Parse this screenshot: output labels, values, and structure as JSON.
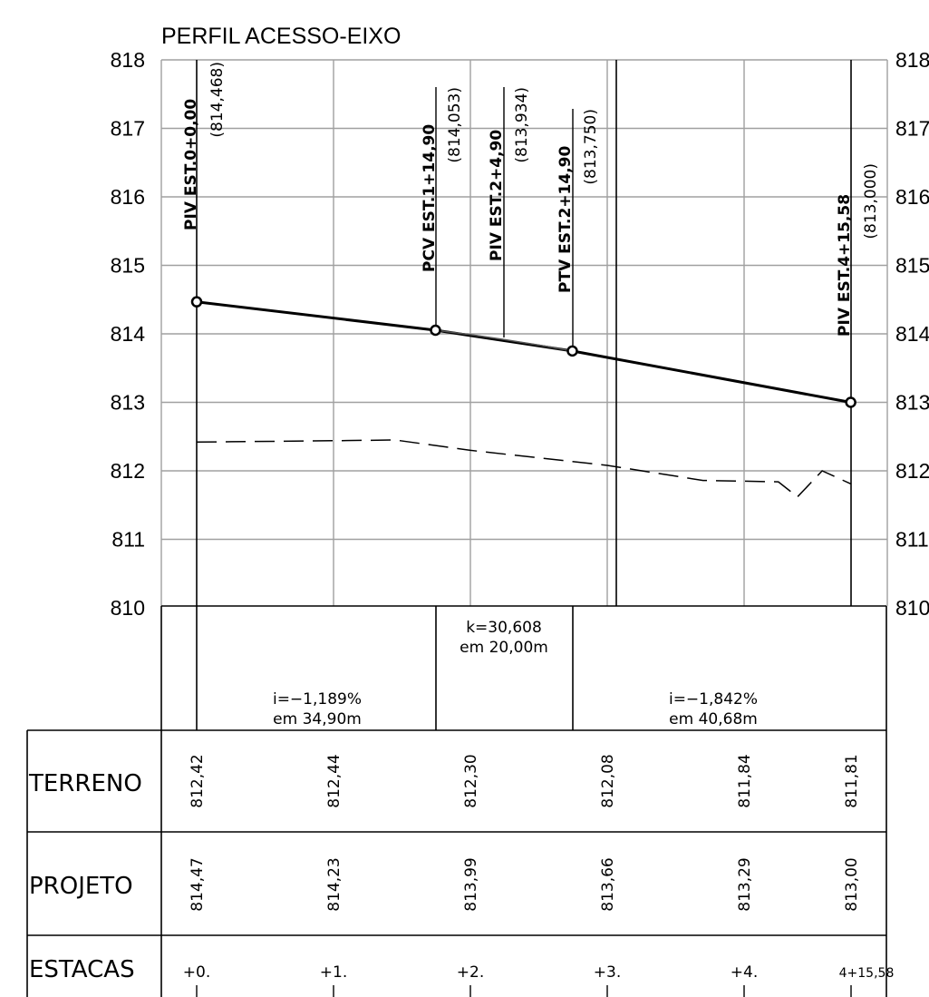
{
  "title": "PERFIL ACESSO-EIXO",
  "y_axis": {
    "ticks": [
      "818",
      "817",
      "816",
      "815",
      "814",
      "813",
      "812",
      "811",
      "810"
    ],
    "right_ticks": [
      "818",
      "817",
      "816",
      "815",
      "814",
      "813",
      "812",
      "811",
      "810"
    ]
  },
  "vertical_points": [
    {
      "label": "PIV EST.0+0,00",
      "elevation": "(814,468)",
      "station": 0.0,
      "value": 814.468
    },
    {
      "label": "PCV EST.1+14,90",
      "elevation": "(814,053)",
      "station": 34.9,
      "value": 814.053
    },
    {
      "label": "PIV EST.2+4,90",
      "elevation": "(813,934)",
      "station": 44.9,
      "value": 813.934
    },
    {
      "label": "PTV EST.2+14,90",
      "elevation": "(813,750)",
      "station": 54.9,
      "value": 813.75
    },
    {
      "label": "PIV EST.4+15,58",
      "elevation": "(813,000)",
      "station": 95.58,
      "value": 813.0
    }
  ],
  "grades": {
    "first": {
      "slope": "i=−1,189%",
      "length": "em  34,90m"
    },
    "curve": {
      "k": "k=30,608",
      "length": "em  20,00m"
    },
    "second": {
      "slope": "i=−1,842%",
      "length": "em  40,68m"
    }
  },
  "table": {
    "rows": [
      {
        "label": "TERRENO",
        "values": [
          "812,42",
          "812,44",
          "812,30",
          "812,08",
          "811,84",
          "811,81"
        ]
      },
      {
        "label": "PROJETO",
        "values": [
          "814,47",
          "814,23",
          "813,99",
          "813,66",
          "813,29",
          "813,00"
        ]
      },
      {
        "label": "ESTACAS",
        "values": [
          "+0.",
          "+1.",
          "+2.",
          "+3.",
          "+4.",
          "4+15,58"
        ]
      }
    ]
  },
  "chart_data": {
    "type": "line",
    "title": "PERFIL ACESSO-EIXO",
    "xlabel": "",
    "ylabel": "",
    "ylim": [
      810,
      818
    ],
    "grid": true,
    "series": [
      {
        "style": "solid",
        "x": [
          0,
          34.9,
          54.9,
          95.58
        ],
        "y": [
          814.468,
          814.053,
          813.75,
          813.0
        ]
      },
      {
        "style": "dashed",
        "x": [
          0,
          20,
          29,
          40,
          60,
          74,
          85,
          87.8,
          91.4,
          95.58
        ],
        "y": [
          812.42,
          812.44,
          812.45,
          812.3,
          812.08,
          811.86,
          811.84,
          811.62,
          812.0,
          811.81
        ]
      }
    ]
  }
}
